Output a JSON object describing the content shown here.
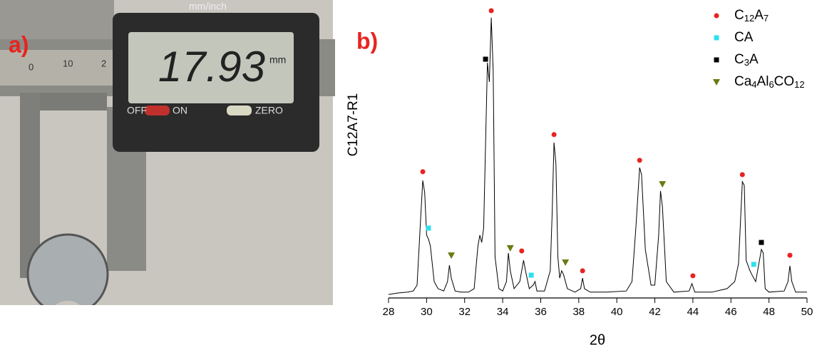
{
  "photo": {
    "panel_label": "a)",
    "display": "17.93",
    "unit": "mm",
    "top_label": "mm/inch",
    "buttons": [
      "OFF",
      "ON",
      "ZERO"
    ],
    "ruler": [
      "0",
      "10",
      "2"
    ]
  },
  "chart_data": {
    "type": "line",
    "panel_label": "b)",
    "x_label": "2θ",
    "y_label": "C12A7-R1",
    "color": "#000000",
    "x": [
      28.0,
      28.5,
      29.0,
      29.3,
      29.5,
      29.7,
      29.8,
      29.9,
      30.0,
      30.1,
      30.2,
      30.4,
      30.6,
      30.9,
      31.1,
      31.2,
      31.3,
      31.5,
      31.8,
      32.2,
      32.5,
      32.7,
      32.8,
      32.9,
      33.0,
      33.2,
      33.3,
      33.4,
      33.5,
      33.6,
      33.8,
      34.0,
      34.2,
      34.3,
      34.4,
      34.6,
      34.9,
      35.1,
      35.2,
      35.4,
      35.6,
      35.7,
      35.8,
      36.2,
      36.5,
      36.6,
      36.7,
      36.8,
      36.9,
      37.0,
      37.1,
      37.2,
      37.4,
      37.8,
      38.1,
      38.2,
      38.3,
      38.6,
      39.5,
      40.5,
      40.8,
      41.0,
      41.2,
      41.3,
      41.5,
      41.8,
      42.0,
      42.2,
      42.3,
      42.4,
      42.6,
      43.0,
      43.8,
      43.95,
      44.1,
      45.0,
      45.8,
      46.2,
      46.4,
      46.6,
      46.7,
      46.8,
      47.0,
      47.1,
      47.3,
      47.6,
      47.7,
      47.8,
      48.0,
      48.8,
      49.0,
      49.1,
      49.2,
      49.4,
      50.0
    ],
    "values": [
      1.2,
      1.7,
      2.0,
      2.4,
      4.4,
      28.8,
      40.2,
      36.1,
      21.5,
      20.2,
      17.8,
      5.6,
      3.2,
      2.4,
      5.6,
      11.2,
      6.8,
      2.4,
      2.0,
      2.0,
      3.2,
      17.8,
      21.5,
      19.0,
      23.9,
      80.5,
      73.9,
      95.9,
      77.6,
      14.1,
      3.2,
      2.4,
      5.6,
      15.4,
      9.3,
      3.2,
      5.6,
      12.9,
      9.3,
      3.2,
      4.4,
      5.6,
      2.4,
      2.4,
      9.3,
      28.8,
      53.2,
      45.9,
      14.1,
      6.8,
      9.3,
      8.0,
      3.2,
      2.0,
      3.2,
      6.8,
      3.2,
      2.0,
      2.0,
      2.4,
      5.6,
      23.9,
      44.6,
      42.2,
      16.6,
      4.4,
      4.4,
      21.5,
      36.6,
      31.2,
      5.6,
      2.0,
      2.4,
      4.9,
      2.0,
      2.0,
      3.2,
      5.6,
      11.7,
      39.8,
      38.5,
      12.9,
      9.3,
      8.0,
      5.6,
      16.6,
      15.4,
      3.2,
      2.0,
      2.4,
      5.6,
      11.0,
      5.6,
      2.0,
      2.0
    ],
    "series": [
      {
        "name": "C12A7",
        "color": "#e8231f",
        "marker": "circle",
        "x": [
          29.8,
          33.4,
          35.0,
          36.7,
          38.2,
          41.2,
          44.0,
          46.6,
          49.1
        ],
        "values": [
          43.2,
          98.3,
          16.1,
          55.9,
          9.3,
          47.1,
          7.6,
          42.2,
          14.6
        ]
      },
      {
        "name": "CA",
        "color": "#2fe0ee",
        "marker": "square",
        "x": [
          30.1,
          35.5,
          47.2
        ],
        "values": [
          23.9,
          7.8,
          11.5
        ]
      },
      {
        "name": "C3A",
        "color": "#000000",
        "marker": "square",
        "x": [
          33.1,
          47.6
        ],
        "values": [
          81.7,
          19.0
        ]
      },
      {
        "name": "Ca4Al6CO12",
        "color": "#6b7a12",
        "marker": "triangle-down",
        "x": [
          31.3,
          34.4,
          37.3,
          42.4
        ],
        "values": [
          14.6,
          17.1,
          12.2,
          39.0
        ]
      }
    ],
    "xlim": [
      28,
      50
    ],
    "xticks": [
      28,
      30,
      32,
      34,
      36,
      38,
      40,
      42,
      44,
      46,
      48,
      50
    ],
    "ylim": [
      0,
      100
    ]
  }
}
